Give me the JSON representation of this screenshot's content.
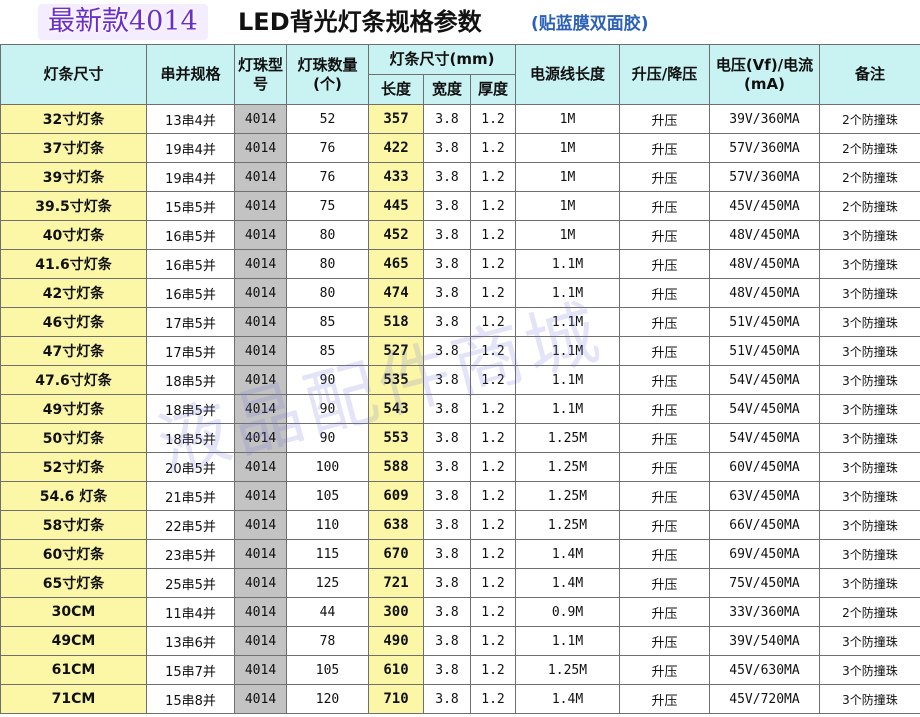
{
  "title": {
    "badge": "最新款4014",
    "main": "LED背光灯条规格参数",
    "sub": "(贴蓝膜双面胶)"
  },
  "headers": {
    "name": "灯条尺寸",
    "series": "串并规格",
    "model": "灯珠型号",
    "count": "灯珠数量(个)",
    "size_group": "灯条尺寸(mm)",
    "length": "长度",
    "width": "宽度",
    "thickness": "厚度",
    "cable": "电源线长度",
    "boost": "升压/降压",
    "voltage": "电压(Vf)/电流(mA)",
    "note": "备注"
  },
  "watermark": "液晶配件商城",
  "rows": [
    {
      "name": "32寸灯条",
      "series": "13串4并",
      "model": "4014",
      "count": "52",
      "length": "357",
      "width": "3.8",
      "thickness": "1.2",
      "cable": "1M",
      "boost": "升压",
      "voltage": "39V/360MA",
      "note": "2个防撞珠"
    },
    {
      "name": "37寸灯条",
      "series": "19串4并",
      "model": "4014",
      "count": "76",
      "length": "422",
      "width": "3.8",
      "thickness": "1.2",
      "cable": "1M",
      "boost": "升压",
      "voltage": "57V/360MA",
      "note": "2个防撞珠"
    },
    {
      "name": "39寸灯条",
      "series": "19串4并",
      "model": "4014",
      "count": "76",
      "length": "433",
      "width": "3.8",
      "thickness": "1.2",
      "cable": "1M",
      "boost": "升压",
      "voltage": "57V/360MA",
      "note": "2个防撞珠"
    },
    {
      "name": "39.5寸灯条",
      "series": "15串5并",
      "model": "4014",
      "count": "75",
      "length": "445",
      "width": "3.8",
      "thickness": "1.2",
      "cable": "1M",
      "boost": "升压",
      "voltage": "45V/450MA",
      "note": "2个防撞珠"
    },
    {
      "name": "40寸灯条",
      "series": "16串5并",
      "model": "4014",
      "count": "80",
      "length": "452",
      "width": "3.8",
      "thickness": "1.2",
      "cable": "1M",
      "boost": "升压",
      "voltage": "48V/450MA",
      "note": "3个防撞珠"
    },
    {
      "name": "41.6寸灯条",
      "series": "16串5并",
      "model": "4014",
      "count": "80",
      "length": "465",
      "width": "3.8",
      "thickness": "1.2",
      "cable": "1.1M",
      "boost": "升压",
      "voltage": "48V/450MA",
      "note": "3个防撞珠"
    },
    {
      "name": "42寸灯条",
      "series": "16串5并",
      "model": "4014",
      "count": "80",
      "length": "474",
      "width": "3.8",
      "thickness": "1.2",
      "cable": "1.1M",
      "boost": "升压",
      "voltage": "48V/450MA",
      "note": "3个防撞珠"
    },
    {
      "name": "46寸灯条",
      "series": "17串5并",
      "model": "4014",
      "count": "85",
      "length": "518",
      "width": "3.8",
      "thickness": "1.2",
      "cable": "1.1M",
      "boost": "升压",
      "voltage": "51V/450MA",
      "note": "3个防撞珠"
    },
    {
      "name": "47寸灯条",
      "series": "17串5并",
      "model": "4014",
      "count": "85",
      "length": "527",
      "width": "3.8",
      "thickness": "1.2",
      "cable": "1.1M",
      "boost": "升压",
      "voltage": "51V/450MA",
      "note": "3个防撞珠"
    },
    {
      "name": "47.6寸灯条",
      "series": "18串5并",
      "model": "4014",
      "count": "90",
      "length": "535",
      "width": "3.8",
      "thickness": "1.2",
      "cable": "1.1M",
      "boost": "升压",
      "voltage": "54V/450MA",
      "note": "3个防撞珠"
    },
    {
      "name": "49寸灯条",
      "series": "18串5并",
      "model": "4014",
      "count": "90",
      "length": "543",
      "width": "3.8",
      "thickness": "1.2",
      "cable": "1.1M",
      "boost": "升压",
      "voltage": "54V/450MA",
      "note": "3个防撞珠"
    },
    {
      "name": "50寸灯条",
      "series": "18串5并",
      "model": "4014",
      "count": "90",
      "length": "553",
      "width": "3.8",
      "thickness": "1.2",
      "cable": "1.25M",
      "boost": "升压",
      "voltage": "54V/450MA",
      "note": "3个防撞珠"
    },
    {
      "name": "52寸灯条",
      "series": "20串5并",
      "model": "4014",
      "count": "100",
      "length": "588",
      "width": "3.8",
      "thickness": "1.2",
      "cable": "1.25M",
      "boost": "升压",
      "voltage": "60V/450MA",
      "note": "3个防撞珠"
    },
    {
      "name": "54.6 灯条",
      "series": "21串5并",
      "model": "4014",
      "count": "105",
      "length": "609",
      "width": "3.8",
      "thickness": "1.2",
      "cable": "1.25M",
      "boost": "升压",
      "voltage": "63V/450MA",
      "note": "3个防撞珠"
    },
    {
      "name": "58寸灯条",
      "series": "22串5并",
      "model": "4014",
      "count": "110",
      "length": "638",
      "width": "3.8",
      "thickness": "1.2",
      "cable": "1.25M",
      "boost": "升压",
      "voltage": "66V/450MA",
      "note": "3个防撞珠"
    },
    {
      "name": "60寸灯条",
      "series": "23串5并",
      "model": "4014",
      "count": "115",
      "length": "670",
      "width": "3.8",
      "thickness": "1.2",
      "cable": "1.4M",
      "boost": "升压",
      "voltage": "69V/450MA",
      "note": "3个防撞珠"
    },
    {
      "name": "65寸灯条",
      "series": "25串5并",
      "model": "4014",
      "count": "125",
      "length": "721",
      "width": "3.8",
      "thickness": "1.2",
      "cable": "1.4M",
      "boost": "升压",
      "voltage": "75V/450MA",
      "note": "3个防撞珠"
    },
    {
      "name": "30CM",
      "series": "11串4并",
      "model": "4014",
      "count": "44",
      "length": "300",
      "width": "3.8",
      "thickness": "1.2",
      "cable": "0.9M",
      "boost": "升压",
      "voltage": "33V/360MA",
      "note": "2个防撞珠"
    },
    {
      "name": "49CM",
      "series": "13串6并",
      "model": "4014",
      "count": "78",
      "length": "490",
      "width": "3.8",
      "thickness": "1.2",
      "cable": "1.1M",
      "boost": "升压",
      "voltage": "39V/540MA",
      "note": "3个防撞珠"
    },
    {
      "name": "61CM",
      "series": "15串7并",
      "model": "4014",
      "count": "105",
      "length": "610",
      "width": "3.8",
      "thickness": "1.2",
      "cable": "1.25M",
      "boost": "升压",
      "voltage": "45V/630MA",
      "note": "3个防撞珠"
    },
    {
      "name": "71CM",
      "series": "15串8并",
      "model": "4014",
      "count": "120",
      "length": "710",
      "width": "3.8",
      "thickness": "1.2",
      "cable": "1.4M",
      "boost": "升压",
      "voltage": "45V/720MA",
      "note": "3个防撞珠"
    }
  ]
}
